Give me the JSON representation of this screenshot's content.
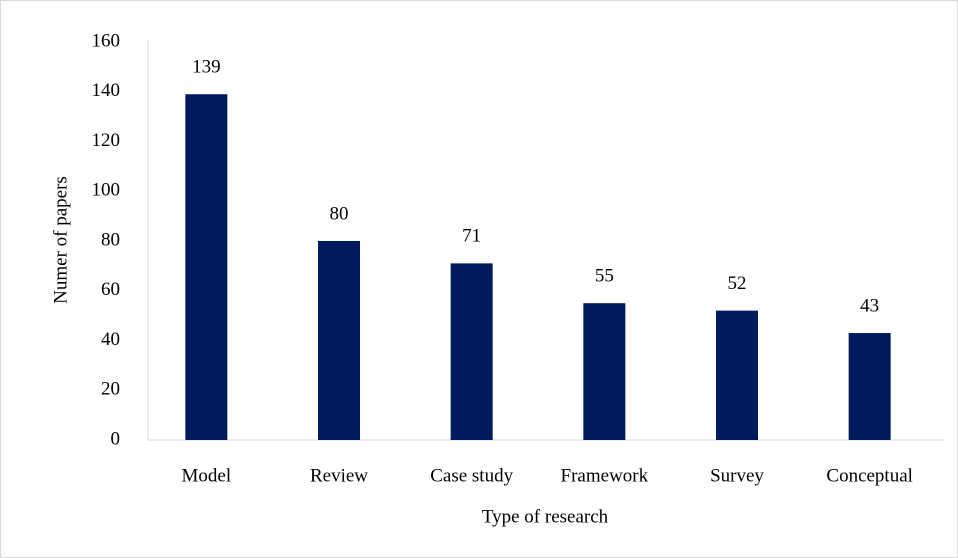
{
  "chart_data": {
    "type": "bar",
    "x_label": "Type of research",
    "y_label": "Numer of papers",
    "categories": [
      "Model",
      "Review",
      "Case study",
      "Framework",
      "Survey",
      "Conceptual"
    ],
    "values": [
      139,
      80,
      71,
      55,
      52,
      43
    ],
    "color": "#001a5e",
    "ylim": [
      0,
      160
    ],
    "yticks": [
      0,
      20,
      40,
      60,
      80,
      100,
      120,
      140,
      160
    ],
    "grid": false,
    "data_labels": true
  }
}
